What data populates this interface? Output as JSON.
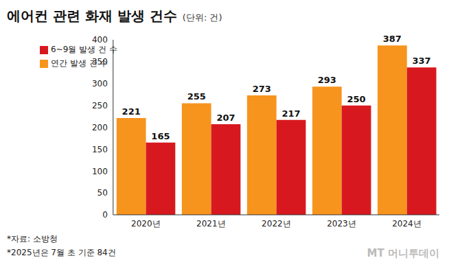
{
  "chart_data": {
    "type": "bar",
    "title": "에어컨 관련 화재 발생 건수",
    "subtitle": "(단위: 건)",
    "categories": [
      "2020년",
      "2021년",
      "2022년",
      "2023년",
      "2024년"
    ],
    "series": [
      {
        "name": "연간 발생 건 수",
        "color": "#F7941D",
        "values": [
          221,
          255,
          273,
          293,
          387
        ]
      },
      {
        "name": "6~9월 발생 건 수",
        "color": "#D7191F",
        "values": [
          165,
          207,
          217,
          250,
          337
        ]
      }
    ],
    "ylim": [
      0,
      400
    ],
    "yticks": [
      0,
      50,
      100,
      150,
      200,
      250,
      300,
      350,
      400
    ],
    "grid": false,
    "data_labels": true,
    "legend": "upper left",
    "annotations": [
      "*자료: 소방청",
      "*2025년은 7월 초 기준 84건",
      "MT 머니투데이"
    ]
  }
}
